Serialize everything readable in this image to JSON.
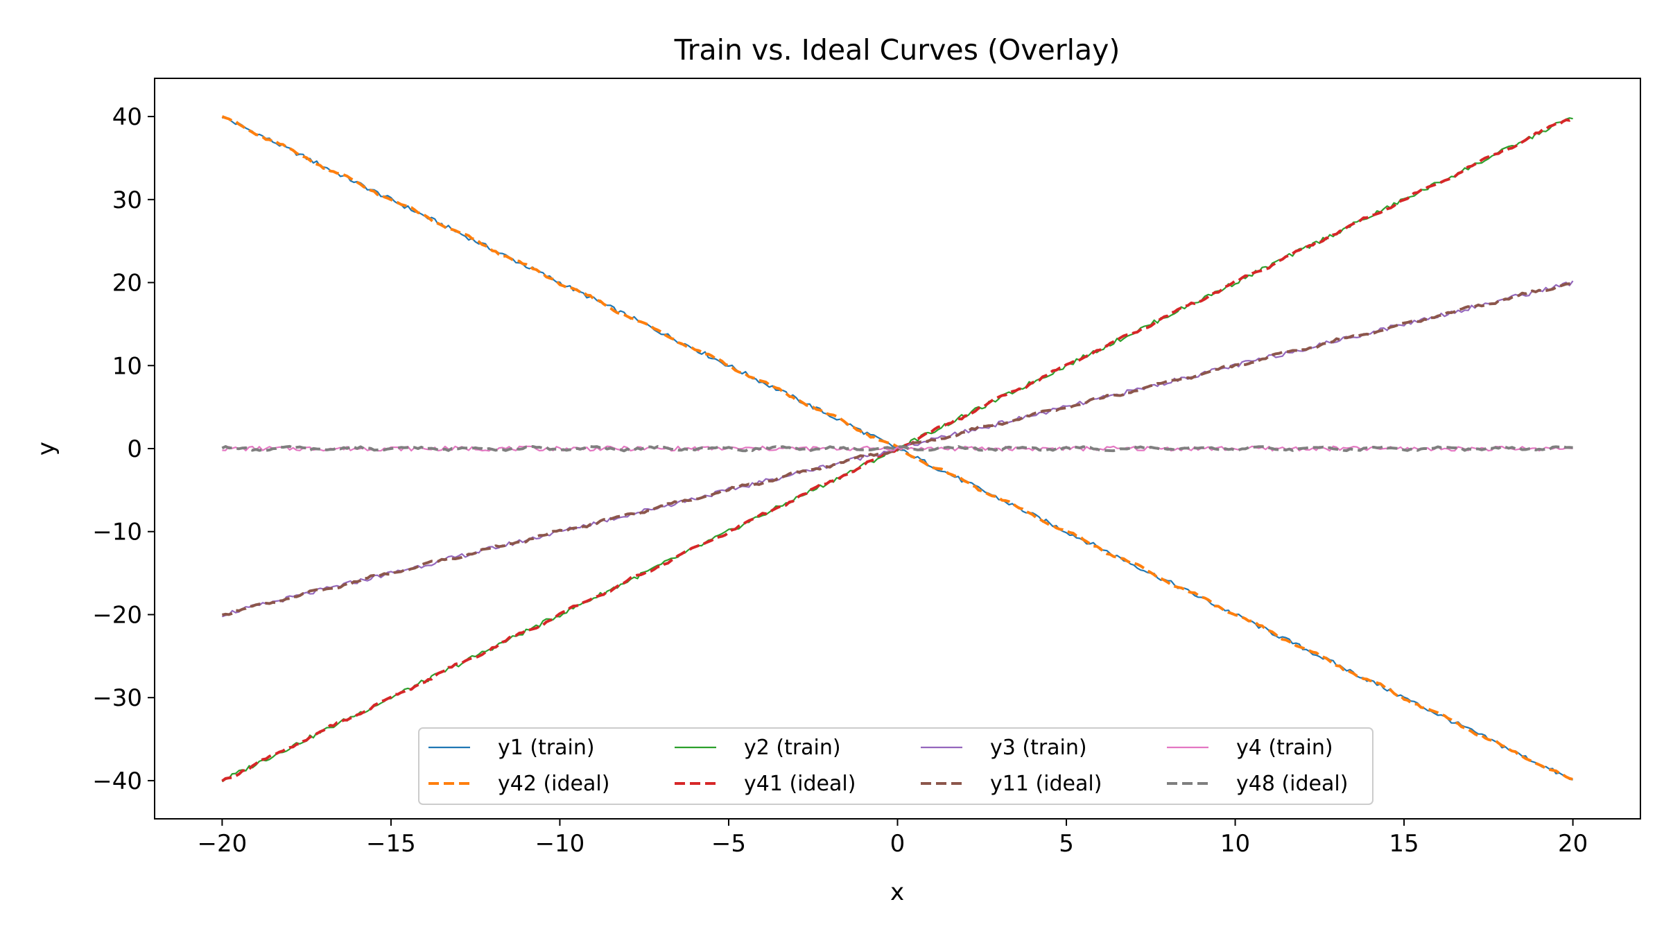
{
  "chart_data": {
    "type": "line",
    "title": "Train vs. Ideal Curves (Overlay)",
    "xlabel": "x",
    "ylabel": "y",
    "xlim": [
      -22,
      22
    ],
    "ylim": [
      -44.6,
      44.6
    ],
    "xticks": [
      -20,
      -15,
      -10,
      -5,
      0,
      5,
      10,
      15,
      20
    ],
    "yticks": [
      -40,
      -30,
      -20,
      -10,
      0,
      10,
      20,
      30,
      40
    ],
    "xtick_labels": [
      "−20",
      "−15",
      "−10",
      "−5",
      "0",
      "5",
      "10",
      "15",
      "20"
    ],
    "ytick_labels": [
      "−40",
      "−30",
      "−20",
      "−10",
      "0",
      "10",
      "20",
      "30",
      "40"
    ],
    "grid": false,
    "legend_position": "lower center",
    "legend_columns": 4,
    "series": [
      {
        "name": "y1 (train)",
        "style": "solid",
        "color": "#1f77b4",
        "x": [
          -20,
          -15,
          -10,
          -5,
          0,
          5,
          10,
          15,
          20
        ],
        "y": [
          40,
          30,
          20,
          10,
          0,
          -10,
          -20,
          -30,
          -40
        ]
      },
      {
        "name": "y42 (ideal)",
        "style": "dashed",
        "color": "#ff7f0e",
        "x": [
          -20,
          -15,
          -10,
          -5,
          0,
          5,
          10,
          15,
          20
        ],
        "y": [
          40,
          30,
          20,
          10,
          0,
          -10,
          -20,
          -30,
          -40
        ]
      },
      {
        "name": "y2 (train)",
        "style": "solid",
        "color": "#2ca02c",
        "x": [
          -20,
          -15,
          -10,
          -5,
          0,
          5,
          10,
          15,
          20
        ],
        "y": [
          -40,
          -30,
          -20,
          -10,
          0,
          10,
          20,
          30,
          40
        ]
      },
      {
        "name": "y41 (ideal)",
        "style": "dashed",
        "color": "#d62728",
        "x": [
          -20,
          -15,
          -10,
          -5,
          0,
          5,
          10,
          15,
          20
        ],
        "y": [
          -40,
          -30,
          -20,
          -10,
          0,
          10,
          20,
          30,
          40
        ]
      },
      {
        "name": "y3 (train)",
        "style": "solid",
        "color": "#9467bd",
        "x": [
          -20,
          -15,
          -10,
          -5,
          0,
          5,
          10,
          15,
          20
        ],
        "y": [
          -20,
          -15,
          -10,
          -5,
          0,
          5,
          10,
          15,
          20
        ]
      },
      {
        "name": "y11 (ideal)",
        "style": "dashed",
        "color": "#8c564b",
        "x": [
          -20,
          -15,
          -10,
          -5,
          0,
          5,
          10,
          15,
          20
        ],
        "y": [
          -20,
          -15,
          -10,
          -5,
          0,
          5,
          10,
          15,
          20
        ]
      },
      {
        "name": "y4 (train)",
        "style": "solid",
        "color": "#e377c2",
        "x": [
          -20,
          -15,
          -10,
          -5,
          0,
          5,
          10,
          15,
          20
        ],
        "y": [
          0,
          0,
          0,
          0,
          0,
          0,
          0,
          0,
          0
        ]
      },
      {
        "name": "y48 (ideal)",
        "style": "dashed",
        "color": "#7f7f7f",
        "x": [
          -20,
          -15,
          -10,
          -5,
          0,
          5,
          10,
          15,
          20
        ],
        "y": [
          0,
          0,
          0,
          0,
          0,
          0,
          0,
          0,
          0
        ]
      }
    ]
  }
}
